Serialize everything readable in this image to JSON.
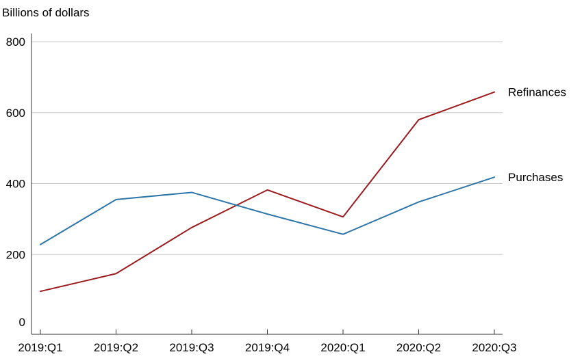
{
  "chart_data": {
    "type": "line",
    "ylabel": "Billions of dollars",
    "categories": [
      "2019:Q1",
      "2019:Q2",
      "2019:Q3",
      "2019:Q4",
      "2020:Q1",
      "2020:Q2",
      "2020:Q3"
    ],
    "ylim": [
      0,
      800
    ],
    "yticks": [
      0,
      200,
      400,
      600,
      800
    ],
    "grid": true,
    "legend": "inline labels at right end of lines",
    "series": [
      {
        "name": "Refinances",
        "color": "#9b1b1e",
        "values": [
          96,
          146,
          276,
          382,
          306,
          580,
          658
        ]
      },
      {
        "name": "Purchases",
        "color": "#2e75a8",
        "values": [
          228,
          355,
          375,
          314,
          257,
          348,
          418
        ]
      }
    ]
  }
}
